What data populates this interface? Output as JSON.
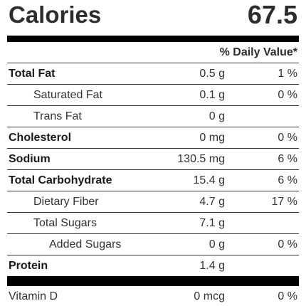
{
  "calories": {
    "label": "Calories",
    "value": "67.5"
  },
  "daily_value_header": "% Daily Value*",
  "nutrients": [
    {
      "name": "Total Fat",
      "amount": "0.5 g",
      "pct": "1 %",
      "bold": true,
      "indent": 0
    },
    {
      "name": "Saturated Fat",
      "amount": "0.1 g",
      "pct": "0 %",
      "bold": false,
      "indent": 1
    },
    {
      "name": "Trans Fat",
      "amount": "0 g",
      "pct": "",
      "bold": false,
      "indent": 1
    },
    {
      "name": "Cholesterol",
      "amount": "0 mg",
      "pct": "0 %",
      "bold": true,
      "indent": 0
    },
    {
      "name": "Sodium",
      "amount": "130.5 mg",
      "pct": "6 %",
      "bold": true,
      "indent": 0
    },
    {
      "name": "Total Carbohydrate",
      "amount": "15.4 g",
      "pct": "6 %",
      "bold": true,
      "indent": 0
    },
    {
      "name": "Dietary Fiber",
      "amount": "4.7 g",
      "pct": "17 %",
      "bold": false,
      "indent": 1
    },
    {
      "name": "Total Sugars",
      "amount": "7.1 g",
      "pct": "",
      "bold": false,
      "indent": 1
    },
    {
      "name": "Added Sugars",
      "amount": "0 g",
      "pct": "0 %",
      "bold": false,
      "indent": 2
    },
    {
      "name": "Protein",
      "amount": "1.4 g",
      "pct": "",
      "bold": true,
      "indent": 0
    }
  ],
  "vitamins": [
    {
      "name": "Vitamin D",
      "amount": "0 mcg",
      "pct": "0 %"
    }
  ]
}
